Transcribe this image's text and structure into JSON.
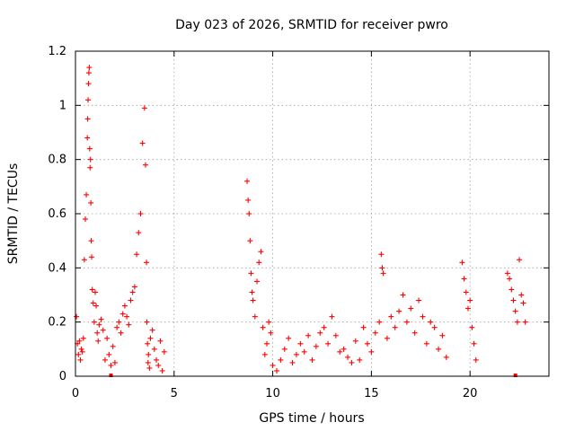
{
  "chart_data": {
    "type": "scatter",
    "title": "Day 023 of 2026, SRMTID for receiver pwro",
    "xlabel": "GPS time / hours",
    "ylabel": "SRMTID / TECUs",
    "xlim": [
      0,
      24
    ],
    "ylim": [
      0,
      1.2
    ],
    "x_ticks": [
      0,
      5,
      10,
      15,
      20
    ],
    "x_tick_labels": [
      "0",
      "5",
      "10",
      "15",
      "20"
    ],
    "y_ticks": [
      0,
      0.2,
      0.4,
      0.6,
      0.8,
      1.0,
      1.2
    ],
    "y_tick_labels": [
      "0",
      "0.2",
      "0.4",
      "0.6",
      "0.8",
      "1",
      "1.2"
    ],
    "grid": true,
    "marker": "+",
    "color": "#ff0000",
    "series": [
      {
        "name": "SRMTID",
        "x": [
          0.05,
          0.1,
          0.15,
          0.2,
          0.25,
          0.3,
          0.35,
          0.4,
          0.45,
          0.5,
          0.55,
          0.6,
          0.62,
          0.64,
          0.66,
          0.68,
          0.7,
          0.72,
          0.74,
          0.76,
          0.78,
          0.8,
          0.82,
          0.85,
          0.9,
          0.95,
          1.0,
          1.05,
          1.1,
          1.15,
          1.2,
          1.3,
          1.4,
          1.5,
          1.6,
          1.7,
          1.8,
          1.9,
          2.0,
          2.1,
          2.2,
          2.3,
          2.4,
          2.5,
          2.6,
          2.7,
          2.8,
          2.9,
          3.0,
          3.1,
          3.2,
          3.3,
          3.4,
          3.5,
          3.55,
          3.6,
          3.62,
          3.65,
          3.68,
          3.7,
          3.75,
          3.8,
          3.9,
          4.0,
          4.1,
          4.2,
          4.3,
          4.4,
          4.5,
          8.7,
          8.75,
          8.8,
          8.85,
          8.9,
          8.95,
          9.0,
          9.1,
          9.2,
          9.3,
          9.4,
          9.5,
          9.6,
          9.7,
          9.8,
          9.9,
          10.0,
          10.2,
          10.4,
          10.6,
          10.8,
          11.0,
          11.2,
          11.4,
          11.6,
          11.8,
          12.0,
          12.2,
          12.4,
          12.6,
          12.8,
          13.0,
          13.2,
          13.4,
          13.6,
          13.8,
          14.0,
          14.2,
          14.4,
          14.6,
          14.8,
          15.0,
          15.2,
          15.4,
          15.5,
          15.55,
          15.6,
          15.8,
          16.0,
          16.2,
          16.4,
          16.6,
          16.8,
          17.0,
          17.2,
          17.4,
          17.6,
          17.8,
          18.0,
          18.2,
          18.4,
          18.6,
          18.8,
          19.6,
          19.7,
          19.8,
          19.9,
          20.0,
          20.1,
          20.2,
          20.3,
          21.9,
          22.0,
          22.1,
          22.2,
          22.3,
          22.4,
          22.5,
          22.6,
          22.7,
          22.8
        ],
        "y": [
          0.22,
          0.12,
          0.08,
          0.13,
          0.06,
          0.1,
          0.09,
          0.14,
          0.43,
          0.58,
          0.67,
          0.88,
          0.95,
          1.02,
          1.08,
          1.12,
          1.14,
          0.84,
          0.77,
          0.8,
          0.64,
          0.5,
          0.44,
          0.32,
          0.27,
          0.2,
          0.31,
          0.26,
          0.16,
          0.13,
          0.19,
          0.21,
          0.17,
          0.06,
          0.14,
          0.08,
          0.04,
          0.11,
          0.05,
          0.18,
          0.2,
          0.16,
          0.23,
          0.26,
          0.22,
          0.19,
          0.28,
          0.31,
          0.33,
          0.45,
          0.53,
          0.6,
          0.86,
          0.99,
          0.78,
          0.42,
          0.2,
          0.12,
          0.05,
          0.08,
          0.03,
          0.14,
          0.17,
          0.1,
          0.06,
          0.04,
          0.13,
          0.02,
          0.09,
          0.72,
          0.65,
          0.6,
          0.5,
          0.38,
          0.31,
          0.28,
          0.22,
          0.35,
          0.42,
          0.46,
          0.18,
          0.08,
          0.12,
          0.2,
          0.16,
          0.04,
          0.02,
          0.06,
          0.1,
          0.14,
          0.05,
          0.08,
          0.12,
          0.09,
          0.15,
          0.06,
          0.11,
          0.16,
          0.18,
          0.12,
          0.22,
          0.15,
          0.09,
          0.1,
          0.07,
          0.05,
          0.13,
          0.06,
          0.18,
          0.12,
          0.09,
          0.16,
          0.2,
          0.45,
          0.4,
          0.38,
          0.14,
          0.22,
          0.18,
          0.24,
          0.3,
          0.2,
          0.25,
          0.16,
          0.28,
          0.22,
          0.12,
          0.2,
          0.18,
          0.1,
          0.15,
          0.07,
          0.42,
          0.36,
          0.31,
          0.25,
          0.28,
          0.18,
          0.12,
          0.06,
          0.38,
          0.36,
          0.32,
          0.28,
          0.24,
          0.2,
          0.43,
          0.3,
          0.27,
          0.2
        ]
      }
    ],
    "annotations": [
      {
        "x": 1.8,
        "y": 0.0
      },
      {
        "x": 22.3,
        "y": 0.0
      }
    ]
  }
}
